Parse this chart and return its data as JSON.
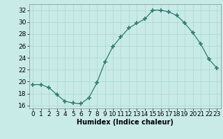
{
  "x": [
    0,
    1,
    2,
    3,
    4,
    5,
    6,
    7,
    8,
    9,
    10,
    11,
    12,
    13,
    14,
    15,
    16,
    17,
    18,
    19,
    20,
    21,
    22,
    23
  ],
  "y": [
    19.5,
    19.5,
    19.0,
    17.8,
    16.7,
    16.4,
    16.3,
    17.3,
    19.8,
    23.3,
    25.9,
    27.5,
    29.0,
    29.8,
    30.5,
    32.0,
    32.0,
    31.7,
    31.1,
    29.8,
    28.2,
    26.3,
    23.8,
    22.3
  ],
  "xlabel": "Humidex (Indice chaleur)",
  "xlim": [
    -0.5,
    23.5
  ],
  "ylim": [
    15.5,
    33.0
  ],
  "yticks": [
    16,
    18,
    20,
    22,
    24,
    26,
    28,
    30,
    32
  ],
  "xticks": [
    0,
    1,
    2,
    3,
    4,
    5,
    6,
    7,
    8,
    9,
    10,
    11,
    12,
    13,
    14,
    15,
    16,
    17,
    18,
    19,
    20,
    21,
    22,
    23
  ],
  "line_color": "#2d7a6e",
  "marker": "+",
  "marker_size": 4,
  "marker_lw": 1.2,
  "bg_color": "#c8ebe8",
  "grid_color": "#b0d8d4",
  "label_fontsize": 7,
  "tick_fontsize": 6.5
}
